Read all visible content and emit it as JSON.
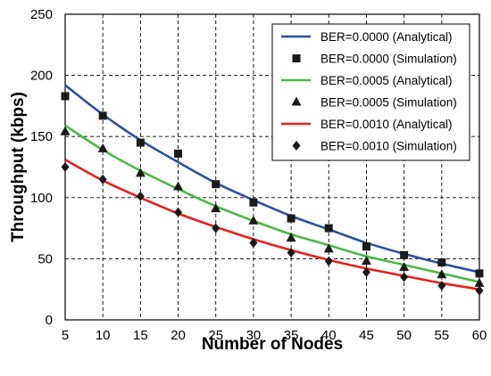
{
  "chart_data": {
    "type": "line",
    "xlabel": "Number of Nodes",
    "ylabel": "Throughput (kbps)",
    "xlim": [
      5,
      60
    ],
    "ylim": [
      0,
      250
    ],
    "xticks": [
      5,
      10,
      15,
      20,
      25,
      30,
      35,
      40,
      45,
      50,
      55,
      60
    ],
    "yticks": [
      0,
      50,
      100,
      150,
      200,
      250
    ],
    "grid": true,
    "legend_position": "top-right",
    "x": [
      5,
      10,
      15,
      20,
      25,
      30,
      35,
      40,
      45,
      50,
      55,
      60
    ],
    "series": [
      {
        "name": "BER=0.0000 (Analytical)",
        "kind": "line",
        "color": "#2e4fa3",
        "values": [
          192,
          168,
          147,
          129,
          112,
          98,
          85,
          74,
          63,
          54,
          46,
          39
        ]
      },
      {
        "name": "BER=0.0000 (Simulation)",
        "kind": "marker",
        "marker": "square",
        "color": "#1a1a1a",
        "values": [
          183,
          167,
          145,
          136,
          111,
          96,
          83,
          75,
          60,
          53,
          47,
          38
        ]
      },
      {
        "name": "BER=0.0005 (Analytical)",
        "kind": "line",
        "color": "#4cb848",
        "values": [
          159,
          139,
          122,
          107,
          93,
          81,
          70,
          61,
          52,
          45,
          38,
          31
        ]
      },
      {
        "name": "BER=0.0005 (Simulation)",
        "kind": "marker",
        "marker": "triangle",
        "color": "#1a1a1a",
        "values": [
          154,
          140,
          120,
          109,
          91,
          81,
          67,
          58,
          48,
          43,
          37,
          30
        ]
      },
      {
        "name": "BER=0.0010 (Analytical)",
        "kind": "line",
        "color": "#e8211d",
        "values": [
          131,
          114,
          100,
          87,
          76,
          66,
          57,
          49,
          42,
          36,
          30,
          25
        ]
      },
      {
        "name": "BER=0.0010 (Simulation)",
        "kind": "marker",
        "marker": "diamond",
        "color": "#1a1a1a",
        "values": [
          125,
          115,
          101,
          88,
          75,
          63,
          55,
          48,
          39,
          35,
          28,
          24
        ]
      }
    ]
  }
}
